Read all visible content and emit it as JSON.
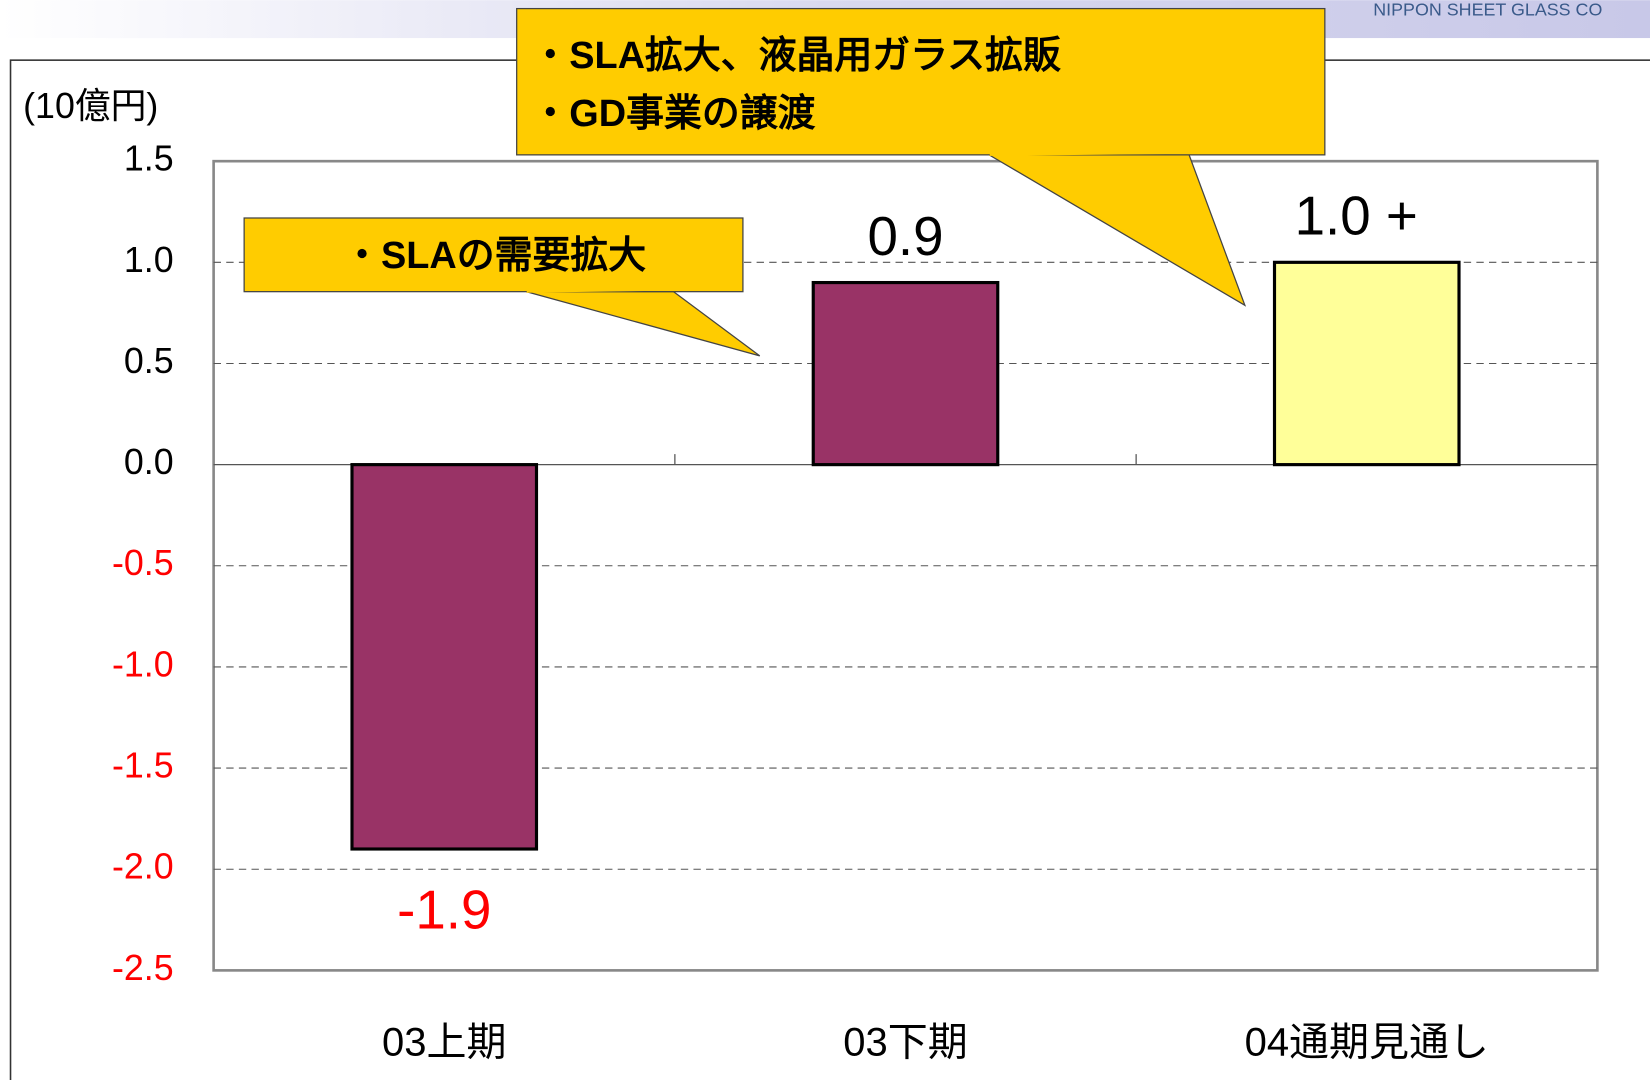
{
  "header_text": "NIPPON SHEET GLASS CO",
  "chart_data": {
    "type": "bar",
    "y_axis_label": "(10億円)",
    "categories": [
      "03上期",
      "03下期",
      "04通期見通し"
    ],
    "values": [
      -1.9,
      0.9,
      1.0
    ],
    "value_labels": [
      "-1.9",
      "0.9",
      "1.0 +"
    ],
    "colors": [
      "#993366",
      "#993366",
      "#ffff99"
    ],
    "negative_color": "#ff0000",
    "ylim": [
      -2.5,
      1.5
    ],
    "yticks": [
      1.5,
      {
        "value": 1,
        "label": "1.0"
      },
      0.5,
      {
        "value": 0,
        "label": "0.0"
      },
      -0.5,
      {
        "value": -1,
        "label": "-1.0"
      },
      -1.5,
      {
        "value": -2,
        "label": "-2.0"
      },
      -2.5
    ],
    "grid": true,
    "annotations": [
      "・SLAの需要拡大",
      "・SLA拡大、液晶用ガラス拡販",
      "・GD事業の譲渡"
    ]
  }
}
